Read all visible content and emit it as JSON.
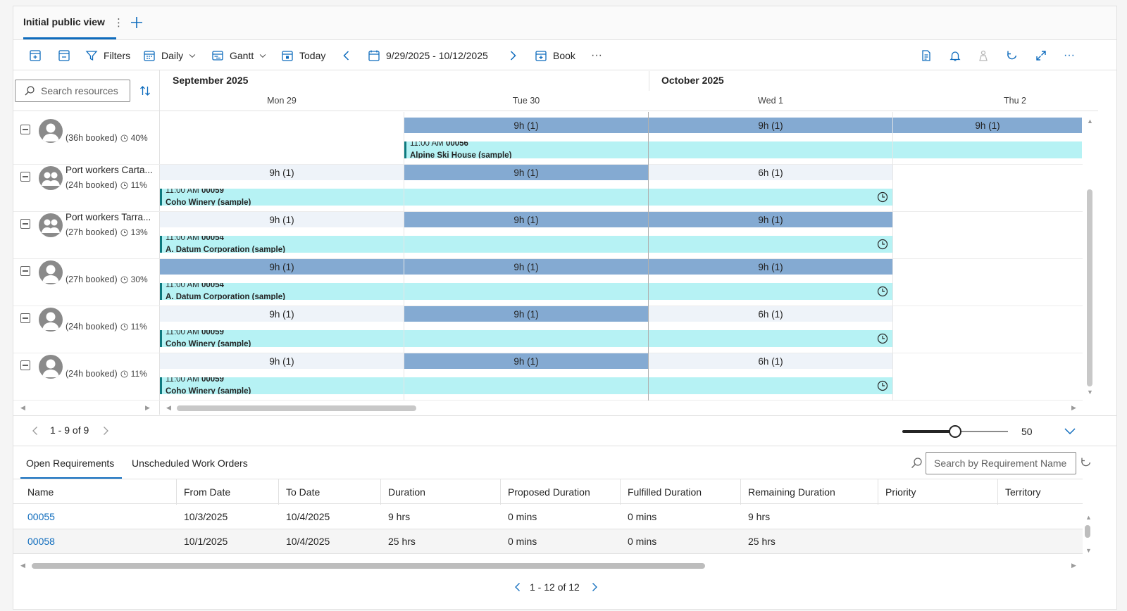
{
  "tabstrip": {
    "active_tab": "Initial public view",
    "kebab": "⋮"
  },
  "toolbar": {
    "filters": "Filters",
    "view_mode": "Daily",
    "layout": "Gantt",
    "today": "Today",
    "date_range": "9/29/2025 - 10/12/2025",
    "book": "Book",
    "more": "···",
    "more_right": "···"
  },
  "scheduler": {
    "search_placeholder": "Search resources",
    "months": [
      "September 2025",
      "October 2025"
    ],
    "days": [
      "Mon 29",
      "Tue 30",
      "Wed 1",
      "Thu 2"
    ],
    "resources": [
      {
        "name": "",
        "booked": "(36h booked)",
        "util": "40%",
        "capacity": [
          "",
          "9h (1)",
          "9h (1)",
          "9h (1)"
        ],
        "booking": {
          "time": "11:00 AM",
          "id": "00056",
          "account": "Alpine Ski House (sample)"
        }
      },
      {
        "name": "Port workers Carta...",
        "booked": "(24h booked)",
        "util": "11%",
        "capacity": [
          "9h (1)",
          "9h (1)",
          "6h (1)"
        ],
        "booking": {
          "time": "11:00 AM",
          "id": "00059",
          "account": "Coho Winery (sample)"
        }
      },
      {
        "name": "Port workers Tarra...",
        "booked": "(27h booked)",
        "util": "13%",
        "capacity": [
          "9h (1)",
          "9h (1)",
          "9h (1)"
        ],
        "booking": {
          "time": "11:00 AM",
          "id": "00054",
          "account": "A. Datum Corporation (sample)"
        }
      },
      {
        "name": "",
        "booked": "(27h booked)",
        "util": "30%",
        "capacity": [
          "9h (1)",
          "9h (1)",
          "9h (1)"
        ],
        "booking": {
          "time": "11:00 AM",
          "id": "00054",
          "account": "A. Datum Corporation (sample)"
        }
      },
      {
        "name": "",
        "booked": "(24h booked)",
        "util": "11%",
        "capacity": [
          "9h (1)",
          "9h (1)",
          "6h (1)"
        ],
        "booking": {
          "time": "11:00 AM",
          "id": "00059",
          "account": "Coho Winery (sample)"
        }
      },
      {
        "name": "",
        "booked": "(24h booked)",
        "util": "11%",
        "capacity": [
          "9h (1)",
          "9h (1)",
          "6h (1)"
        ],
        "booking": {
          "time": "11:00 AM",
          "id": "00059",
          "account": "Coho Winery (sample)"
        }
      }
    ],
    "pager": "1 - 9 of 9",
    "zoom_value": "50",
    "zoom_fraction": 0.5
  },
  "requirements": {
    "tabs": [
      "Open Requirements",
      "Unscheduled Work Orders"
    ],
    "search_placeholder": "Search by Requirement Name",
    "columns": [
      "Name",
      "From Date",
      "To Date",
      "Duration",
      "Proposed Duration",
      "Fulfilled Duration",
      "Remaining Duration",
      "Priority",
      "Territory"
    ],
    "rows": [
      [
        "00055",
        "10/3/2025",
        "10/4/2025",
        "9 hrs",
        "0 mins",
        "0 mins",
        "9 hrs",
        "",
        ""
      ],
      [
        "00058",
        "10/1/2025",
        "10/4/2025",
        "25 hrs",
        "0 mins",
        "0 mins",
        "25 hrs",
        "",
        ""
      ]
    ],
    "pager": "1 - 12 of 12"
  },
  "colors": {
    "accent": "#0f6cbd",
    "capacity_full": "#84aad2",
    "capacity_partial": "#eef3f9",
    "booking_fill": "#b6f2f4",
    "booking_bar": "#0e7a7f"
  }
}
